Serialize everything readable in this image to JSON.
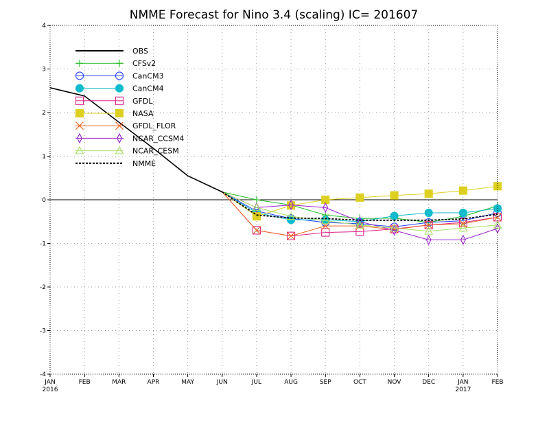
{
  "chart_data": {
    "type": "line",
    "title": "NMME Forecast for Nino 3.4 (scaling) IC= 201607",
    "xlabel": "",
    "ylabel": "",
    "x_categories": [
      "JAN",
      "FEB",
      "MAR",
      "APR",
      "MAY",
      "JUN",
      "JUL",
      "AUG",
      "SEP",
      "OCT",
      "NOV",
      "DEC",
      "JAN",
      "FEB"
    ],
    "x_year_labels": [
      {
        "index": 0,
        "label": "2016"
      },
      {
        "index": 12,
        "label": "2017"
      }
    ],
    "y_ticks": [
      4,
      3,
      2,
      1,
      0,
      -1,
      -2,
      -3,
      -4
    ],
    "ylim": [
      -4,
      4
    ],
    "xlim": [
      0,
      13
    ],
    "grid": true,
    "zero_line": true,
    "legend_position": "top-left",
    "series": [
      {
        "name": "OBS",
        "color": "#000000",
        "marker": "none",
        "dash": "solid",
        "x": [
          0,
          1,
          2,
          3,
          4,
          5
        ],
        "y": [
          2.57,
          2.38,
          1.78,
          1.18,
          0.55,
          0.18
        ]
      },
      {
        "name": "CFSv2",
        "color": "#22bb22",
        "marker": "plus",
        "dash": "solid",
        "x": [
          5,
          6,
          7,
          8,
          9,
          10,
          11,
          12,
          13
        ],
        "y": [
          0.18,
          0.0,
          -0.12,
          -0.35,
          -0.43,
          -0.42,
          -0.52,
          -0.38,
          -0.14
        ]
      },
      {
        "name": "CanCM3",
        "color": "#2244ff",
        "marker": "circle",
        "dash": "solid",
        "x": [
          5,
          6,
          7,
          8,
          9,
          10,
          11,
          12,
          13
        ],
        "y": [
          0.18,
          -0.26,
          -0.43,
          -0.52,
          -0.55,
          -0.62,
          -0.52,
          -0.48,
          -0.3
        ]
      },
      {
        "name": "CanCM4",
        "color": "#11bbcc",
        "marker": "filled-circle",
        "dash": "solid",
        "x": [
          5,
          6,
          7,
          8,
          9,
          10,
          11,
          12,
          13
        ],
        "y": [
          0.18,
          -0.3,
          -0.46,
          -0.46,
          -0.5,
          -0.37,
          -0.3,
          -0.3,
          -0.2
        ]
      },
      {
        "name": "GFDL",
        "color": "#dd2288",
        "marker": "square",
        "dash": "solid",
        "x": [
          5,
          6,
          7,
          8,
          9,
          10,
          11,
          12,
          13
        ],
        "y": [
          0.18,
          -0.7,
          -0.83,
          -0.75,
          -0.73,
          -0.67,
          -0.58,
          -0.52,
          -0.4
        ]
      },
      {
        "name": "NASA",
        "color": "#ddd020",
        "marker": "filled-square",
        "dash": "solid",
        "x": [
          5,
          6,
          7,
          8,
          9,
          10,
          11,
          12,
          13
        ],
        "y": [
          0.18,
          -0.38,
          -0.13,
          0.0,
          0.05,
          0.1,
          0.14,
          0.21,
          0.31
        ]
      },
      {
        "name": "GFDL_FLOR",
        "color": "#ee6622",
        "marker": "x",
        "dash": "solid",
        "x": [
          5,
          6,
          7,
          8,
          9,
          10,
          11,
          12,
          13
        ],
        "y": [
          0.18,
          -0.7,
          -0.83,
          -0.6,
          -0.6,
          -0.68,
          -0.58,
          -0.55,
          -0.4
        ]
      },
      {
        "name": "NCAR_CCSM4",
        "color": "#9922cc",
        "marker": "diamond",
        "dash": "solid",
        "x": [
          5,
          6,
          7,
          8,
          9,
          10,
          11,
          12,
          13
        ],
        "y": [
          0.18,
          -0.18,
          -0.12,
          -0.18,
          -0.5,
          -0.7,
          -0.92,
          -0.92,
          -0.66
        ]
      },
      {
        "name": "NCAR_CESM",
        "color": "#a8e060",
        "marker": "triangle",
        "dash": "solid",
        "x": [
          5,
          6,
          7,
          8,
          9,
          10,
          11,
          12,
          13
        ],
        "y": [
          0.18,
          -0.18,
          -0.38,
          -0.48,
          -0.58,
          -0.65,
          -0.72,
          -0.65,
          -0.58
        ]
      },
      {
        "name": "NMME",
        "color": "#000000",
        "marker": "none",
        "dash": "dashed",
        "x": [
          5,
          6,
          7,
          8,
          9,
          10,
          11,
          12,
          13
        ],
        "y": [
          0.18,
          -0.35,
          -0.42,
          -0.43,
          -0.47,
          -0.47,
          -0.47,
          -0.44,
          -0.33
        ]
      }
    ]
  }
}
